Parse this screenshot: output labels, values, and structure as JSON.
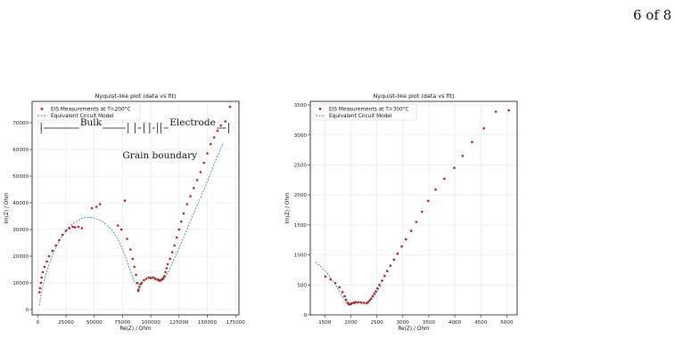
{
  "page": {
    "number_label": "6 of 8"
  },
  "colors": {
    "points": "#b22222",
    "fit": "#3a86c8",
    "grid": "#e6e6e6",
    "axis": "#333333"
  },
  "chart_data": [
    {
      "type": "scatter",
      "title": "Nyquist-like plot (data vs fit)",
      "xlabel": "Re(Z) / Ohm",
      "ylabel": "Im(Z) / Ohm",
      "xlim": [
        -5000,
        178000
      ],
      "ylim": [
        -2000,
        78000
      ],
      "xticks": [
        0,
        25000,
        50000,
        75000,
        100000,
        125000,
        150000,
        175000
      ],
      "xtick_labels": [
        "0",
        "25000",
        "50000",
        "75000",
        "100000",
        "125000",
        "150000",
        "175000"
      ],
      "yticks": [
        0,
        10000,
        20000,
        30000,
        40000,
        50000,
        60000,
        70000
      ],
      "ytick_labels": [
        "0",
        "10000",
        "20000",
        "30000",
        "40000",
        "50000",
        "60000",
        "70000"
      ],
      "grid": true,
      "legend_position": "upper-left",
      "series": [
        {
          "name": "EIS Measurements at T=200°C",
          "kind": "points",
          "x": [
            1500,
            2000,
            2800,
            3500,
            4500,
            6000,
            8000,
            10000,
            13000,
            16000,
            19000,
            22000,
            25000,
            28000,
            31000,
            33000,
            36000,
            39000,
            48000,
            52000,
            55000,
            71000,
            74000,
            77000,
            79000,
            82000,
            84000,
            85500,
            87000,
            88000,
            88800,
            89200,
            90000,
            91000,
            92000,
            94000,
            96000,
            98000,
            100000,
            102000,
            104000,
            106000,
            107000,
            108000,
            109000,
            110000,
            111000,
            112000,
            113000,
            114000,
            115000,
            117000,
            119000,
            121000,
            123000,
            125000,
            127000,
            129000,
            132000,
            135000,
            138000,
            141000,
            144000,
            147000,
            150000,
            153000,
            156000,
            159000,
            162000,
            166000,
            170000
          ],
          "y": [
            6500,
            8000,
            10000,
            12000,
            14000,
            16000,
            18000,
            20000,
            22000,
            24000,
            26000,
            28000,
            29500,
            30500,
            31000,
            30800,
            31000,
            30500,
            38000,
            38500,
            39500,
            31500,
            30000,
            40800,
            26500,
            22500,
            19000,
            16000,
            13000,
            10000,
            7000,
            7500,
            8500,
            9500,
            10000,
            11000,
            11500,
            12000,
            11800,
            12000,
            11500,
            11200,
            11000,
            10800,
            11000,
            11300,
            11800,
            12500,
            14000,
            15500,
            17000,
            19000,
            21500,
            24000,
            27000,
            30000,
            33000,
            36000,
            39500,
            42500,
            45500,
            48500,
            51500,
            55000,
            58500,
            62000,
            64500,
            67000,
            69000,
            70500,
            76000
          ]
        },
        {
          "name": "Equivalent Circuit Model",
          "kind": "dashed-line",
          "x": [
            1500,
            2500,
            4000,
            6000,
            8500,
            11000,
            14000,
            17000,
            20000,
            24000,
            28000,
            32000,
            36000,
            40000,
            44000,
            48000,
            52000,
            56000,
            60000,
            64000,
            68000,
            72000,
            76000,
            79000,
            82000,
            84000,
            86000,
            88000,
            90000,
            93000,
            96000,
            99000,
            102000,
            105000,
            108000,
            110000,
            112000,
            114000,
            117000,
            120000,
            124000,
            128000,
            132000,
            136000,
            140000,
            144000,
            148000,
            152000,
            156000,
            160000,
            164000
          ],
          "y": [
            1500,
            4500,
            8000,
            11500,
            15000,
            18000,
            21500,
            24000,
            26500,
            29000,
            31000,
            32500,
            33500,
            34300,
            34600,
            34500,
            34000,
            33300,
            32000,
            30500,
            28500,
            25500,
            21500,
            18000,
            14500,
            12000,
            10000,
            9300,
            9500,
            10500,
            11500,
            12000,
            12200,
            11800,
            11200,
            11000,
            11500,
            13000,
            15500,
            18500,
            22000,
            26000,
            30000,
            34000,
            38000,
            42000,
            46000,
            50000,
            54500,
            58500,
            62500
          ]
        }
      ],
      "annotations": [
        {
          "text": "Bulk",
          "x": 47000,
          "y": 68000
        },
        {
          "text": "Electrode",
          "x": 137000,
          "y": 68000
        },
        {
          "text": "Grain boundary",
          "x": 108000,
          "y": 57000
        }
      ]
    },
    {
      "type": "scatter",
      "title": "Nyquist-like plot (data vs fit)",
      "xlabel": "Re(Z) / Ohm",
      "ylabel": "Im(Z) / Ohm",
      "xlim": [
        1220,
        5200
      ],
      "ylim": [
        0,
        3560
      ],
      "xticks": [
        1500,
        2000,
        2500,
        3000,
        3500,
        4000,
        4500,
        5000
      ],
      "xtick_labels": [
        "1500",
        "2000",
        "2500",
        "3000",
        "3500",
        "4000",
        "4500",
        "5000"
      ],
      "yticks": [
        0,
        500,
        1000,
        1500,
        2000,
        2500,
        3000,
        3500
      ],
      "ytick_labels": [
        "0",
        "500",
        "1000",
        "1500",
        "2000",
        "2500",
        "3000",
        "3500"
      ],
      "grid": true,
      "legend_position": "upper-left",
      "series": [
        {
          "name": "EIS Measurements at T=300°C",
          "kind": "points",
          "x": [
            1510,
            1610,
            1700,
            1780,
            1840,
            1880,
            1910,
            1940,
            1960,
            1980,
            2000,
            2020,
            2060,
            2100,
            2150,
            2200,
            2250,
            2300,
            2330,
            2360,
            2390,
            2420,
            2450,
            2480,
            2510,
            2550,
            2600,
            2650,
            2700,
            2760,
            2830,
            2900,
            2980,
            3060,
            3160,
            3260,
            3370,
            3490,
            3630,
            3800,
            3990,
            4150,
            4330,
            4560,
            4790,
            5040
          ],
          "y": [
            640,
            590,
            530,
            460,
            380,
            310,
            250,
            200,
            180,
            175,
            185,
            195,
            205,
            210,
            210,
            205,
            200,
            195,
            210,
            240,
            270,
            310,
            350,
            390,
            440,
            500,
            570,
            650,
            730,
            820,
            920,
            1020,
            1140,
            1260,
            1400,
            1550,
            1720,
            1900,
            2090,
            2270,
            2450,
            2650,
            2880,
            3110,
            3390,
            3410
          ]
        },
        {
          "name": "Equivalent Circuit Model",
          "kind": "dashed-line",
          "x": [
            1320,
            1420,
            1520,
            1620,
            1720,
            1800,
            1860,
            1910,
            1950,
            1990,
            2050,
            2120,
            2200,
            2280,
            2340,
            2400,
            2460,
            2520,
            2580
          ],
          "y": [
            880,
            810,
            720,
            610,
            480,
            360,
            270,
            210,
            180,
            170,
            178,
            195,
            200,
            190,
            210,
            260,
            330,
            410,
            490
          ]
        }
      ]
    }
  ]
}
